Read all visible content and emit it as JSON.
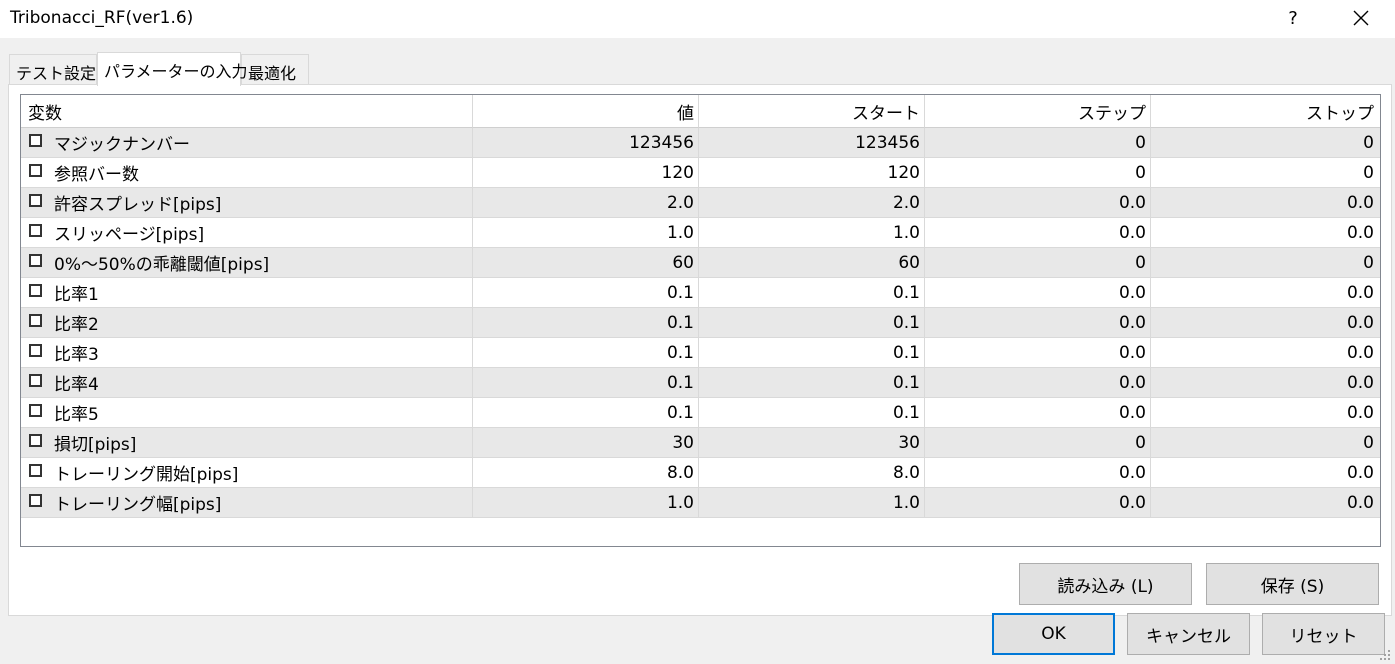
{
  "window": {
    "title": "Tribonacci_RF(ver1.6)",
    "help": "?",
    "close_icon": "close-icon"
  },
  "tabs": [
    {
      "label": "テスト設定",
      "active": false
    },
    {
      "label": "パラメーターの入力",
      "active": true
    },
    {
      "label": "最適化",
      "active": false
    }
  ],
  "table": {
    "columns": [
      "変数",
      "値",
      "スタート",
      "ステップ",
      "ストップ"
    ],
    "rows": [
      {
        "name": "マジックナンバー",
        "value": "123456",
        "start": "123456",
        "step": "0",
        "stop": "0",
        "checked": false
      },
      {
        "name": "参照バー数",
        "value": "120",
        "start": "120",
        "step": "0",
        "stop": "0",
        "checked": false
      },
      {
        "name": "許容スプレッド[pips]",
        "value": "2.0",
        "start": "2.0",
        "step": "0.0",
        "stop": "0.0",
        "checked": false
      },
      {
        "name": "スリッページ[pips]",
        "value": "1.0",
        "start": "1.0",
        "step": "0.0",
        "stop": "0.0",
        "checked": false
      },
      {
        "name": "0%～50%の乖離閾値[pips]",
        "value": "60",
        "start": "60",
        "step": "0",
        "stop": "0",
        "checked": false
      },
      {
        "name": "比率1",
        "value": "0.1",
        "start": "0.1",
        "step": "0.0",
        "stop": "0.0",
        "checked": false
      },
      {
        "name": "比率2",
        "value": "0.1",
        "start": "0.1",
        "step": "0.0",
        "stop": "0.0",
        "checked": false
      },
      {
        "name": "比率3",
        "value": "0.1",
        "start": "0.1",
        "step": "0.0",
        "stop": "0.0",
        "checked": false
      },
      {
        "name": "比率4",
        "value": "0.1",
        "start": "0.1",
        "step": "0.0",
        "stop": "0.0",
        "checked": false
      },
      {
        "name": "比率5",
        "value": "0.1",
        "start": "0.1",
        "step": "0.0",
        "stop": "0.0",
        "checked": false
      },
      {
        "name": "損切[pips]",
        "value": "30",
        "start": "30",
        "step": "0",
        "stop": "0",
        "checked": false
      },
      {
        "name": "トレーリング開始[pips]",
        "value": "8.0",
        "start": "8.0",
        "step": "0.0",
        "stop": "0.0",
        "checked": false
      },
      {
        "name": "トレーリング幅[pips]",
        "value": "1.0",
        "start": "1.0",
        "step": "0.0",
        "stop": "0.0",
        "checked": false
      }
    ]
  },
  "buttons": {
    "load": "読み込み (L)",
    "save": "保存 (S)",
    "ok": "OK",
    "cancel": "キャンセル",
    "reset": "リセット"
  },
  "colors": {
    "default_button_border": "#0078d7",
    "alt_row": "#e8e8e8"
  }
}
